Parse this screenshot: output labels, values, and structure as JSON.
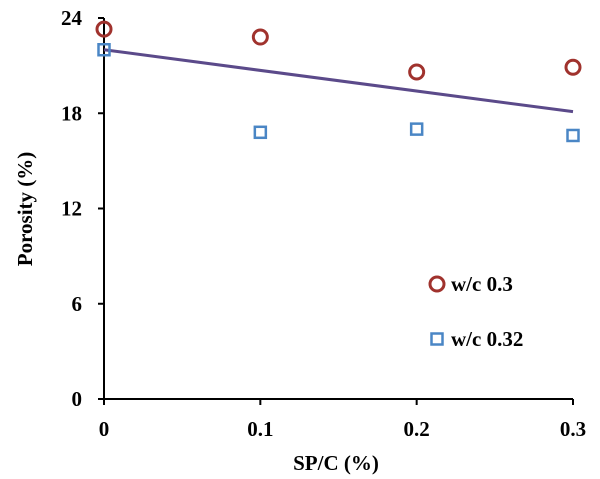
{
  "chart_data": {
    "type": "scatter",
    "xlabel": "SP/C (%)",
    "ylabel": "Porosity (%)",
    "xlim": [
      0,
      0.3
    ],
    "ylim": [
      0,
      24
    ],
    "x_ticks": [
      "0",
      "0.1",
      "0.2",
      "0.3"
    ],
    "y_ticks": [
      "0",
      "6",
      "12",
      "18",
      "24"
    ],
    "grid": false,
    "legend_position": "inside-lower-right",
    "series": [
      {
        "name": "w/c 0.3",
        "marker": "circle",
        "color": "#a0322d",
        "points": [
          [
            0,
            23.3
          ],
          [
            0.1,
            22.8
          ],
          [
            0.2,
            20.6
          ],
          [
            0.3,
            20.9
          ]
        ]
      },
      {
        "name": "w/c 0.32",
        "marker": "square",
        "color": "#4a86c5",
        "points": [
          [
            0,
            22.0
          ],
          [
            0.1,
            16.8
          ],
          [
            0.2,
            17.0
          ],
          [
            0.3,
            16.6
          ]
        ]
      }
    ],
    "trendline": {
      "color": "#5b4a8a",
      "points": [
        [
          0,
          22.0
        ],
        [
          0.3,
          18.1
        ]
      ]
    }
  }
}
